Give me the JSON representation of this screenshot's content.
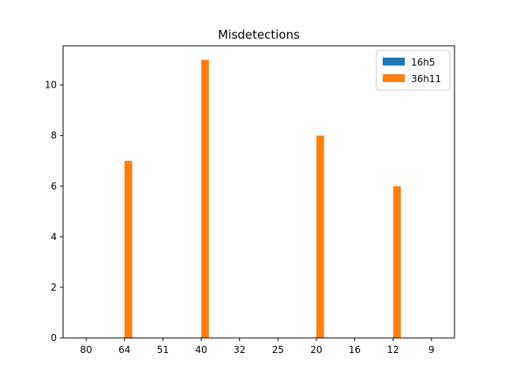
{
  "chart_data": {
    "type": "bar",
    "title": "Misdetections",
    "xlabel": "",
    "ylabel": "",
    "categories": [
      "80",
      "64",
      "51",
      "40",
      "32",
      "25",
      "20",
      "16",
      "12",
      "9"
    ],
    "series": [
      {
        "name": "16h5",
        "color": "#1f77b4",
        "values": [
          0,
          0,
          0,
          0,
          0,
          0,
          0,
          0,
          0,
          0
        ]
      },
      {
        "name": "36h11",
        "color": "#ff7f0e",
        "values": [
          0,
          7,
          0,
          11,
          0,
          0,
          8,
          0,
          6,
          0
        ]
      }
    ],
    "ylim": [
      0,
      11.55
    ],
    "yticks": [
      0,
      2,
      4,
      6,
      8,
      10
    ],
    "grid": false,
    "legend": "top-right"
  }
}
